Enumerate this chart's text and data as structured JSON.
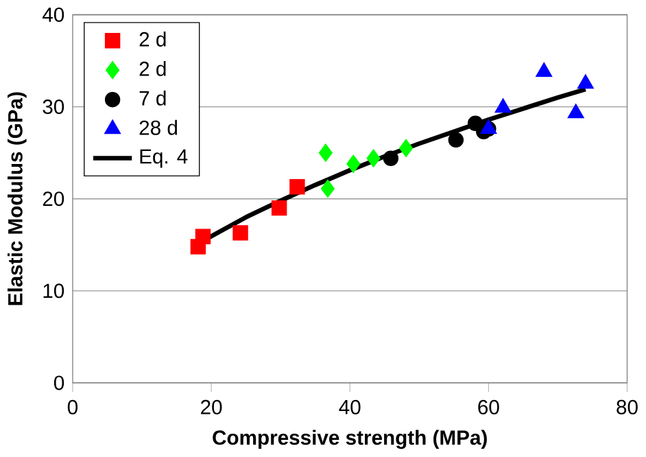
{
  "chart_data": {
    "type": "scatter",
    "xlabel": "Compressive strength (MPa)",
    "ylabel": "Elastic Modulus (GPa)",
    "xlim": [
      0,
      80
    ],
    "ylim": [
      0,
      40
    ],
    "xticks": [
      0,
      20,
      40,
      60,
      80
    ],
    "yticks": [
      0,
      10,
      20,
      30,
      40
    ],
    "grid": "y",
    "legend": "top left",
    "series": [
      {
        "name": "2 d",
        "color": "#ff0000",
        "marker": "square",
        "x": [
          18.1,
          18.8,
          24.2,
          29.8,
          32.4
        ],
        "values": [
          14.8,
          15.9,
          16.3,
          19.0,
          21.3
        ]
      },
      {
        "name": "2 d",
        "color": "#00ff00",
        "marker": "diamond",
        "x": [
          36.5,
          36.8,
          40.5,
          43.4,
          48.1
        ],
        "values": [
          25.0,
          21.1,
          23.8,
          24.4,
          25.5
        ]
      },
      {
        "name": "7 d",
        "color": "#000000",
        "marker": "circle",
        "x": [
          45.9,
          55.3,
          58.1,
          59.3,
          60.0
        ],
        "values": [
          24.4,
          26.4,
          28.2,
          27.3,
          27.6
        ]
      },
      {
        "name": "28 d",
        "color": "#0000ff",
        "marker": "triangle",
        "x": [
          60.0,
          62.1,
          68.0,
          72.6,
          74.0
        ],
        "values": [
          27.6,
          29.9,
          33.8,
          29.3,
          32.5
        ]
      },
      {
        "name": "Eq. 4",
        "type": "line",
        "color": "#000000",
        "marker": "none",
        "x": [
          18,
          25,
          30,
          35,
          40,
          45,
          50,
          55,
          60,
          65,
          70,
          74
        ],
        "values": [
          15.1,
          18.0,
          19.8,
          21.5,
          23.1,
          24.6,
          26.0,
          27.3,
          28.6,
          29.8,
          31.0,
          31.9
        ]
      }
    ]
  }
}
